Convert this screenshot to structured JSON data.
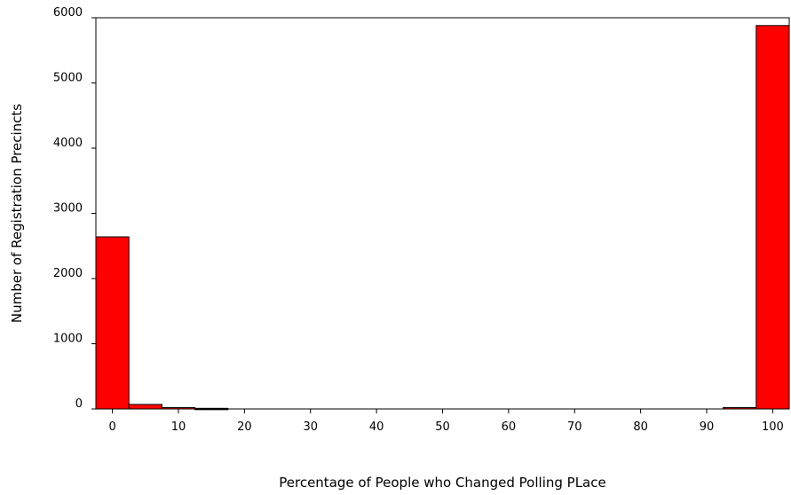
{
  "chart_data": {
    "type": "bar",
    "title": "",
    "xlabel": "Percentage of People who Changed Polling PLace",
    "ylabel": "Number of Registration Precincts",
    "xlim": [
      -2.5,
      102.5
    ],
    "ylim": [
      0,
      6000
    ],
    "x_ticks": [
      0,
      10,
      20,
      30,
      40,
      50,
      60,
      70,
      80,
      90,
      100
    ],
    "y_ticks": [
      0,
      1000,
      2000,
      3000,
      4000,
      5000,
      6000
    ],
    "bin_width": 5,
    "bins": [
      {
        "start": -2.5,
        "end": 2.5,
        "value": 2640
      },
      {
        "start": 2.5,
        "end": 7.5,
        "value": 70
      },
      {
        "start": 7.5,
        "end": 12.5,
        "value": 20
      },
      {
        "start": 12.5,
        "end": 17.5,
        "value": 10
      },
      {
        "start": 17.5,
        "end": 22.5,
        "value": 0
      },
      {
        "start": 22.5,
        "end": 27.5,
        "value": 0
      },
      {
        "start": 27.5,
        "end": 32.5,
        "value": 0
      },
      {
        "start": 32.5,
        "end": 37.5,
        "value": 0
      },
      {
        "start": 37.5,
        "end": 42.5,
        "value": 0
      },
      {
        "start": 42.5,
        "end": 47.5,
        "value": 0
      },
      {
        "start": 47.5,
        "end": 52.5,
        "value": 0
      },
      {
        "start": 52.5,
        "end": 57.5,
        "value": 0
      },
      {
        "start": 57.5,
        "end": 62.5,
        "value": 0
      },
      {
        "start": 62.5,
        "end": 67.5,
        "value": 0
      },
      {
        "start": 67.5,
        "end": 72.5,
        "value": 0
      },
      {
        "start": 72.5,
        "end": 77.5,
        "value": 0
      },
      {
        "start": 77.5,
        "end": 82.5,
        "value": 0
      },
      {
        "start": 82.5,
        "end": 87.5,
        "value": 0
      },
      {
        "start": 87.5,
        "end": 92.5,
        "value": 0
      },
      {
        "start": 92.5,
        "end": 97.5,
        "value": 20
      },
      {
        "start": 97.5,
        "end": 102.5,
        "value": 5880
      }
    ],
    "bar_color": "#ff0000",
    "bar_edge_color": "#000000",
    "grid": false,
    "legend": "none"
  }
}
